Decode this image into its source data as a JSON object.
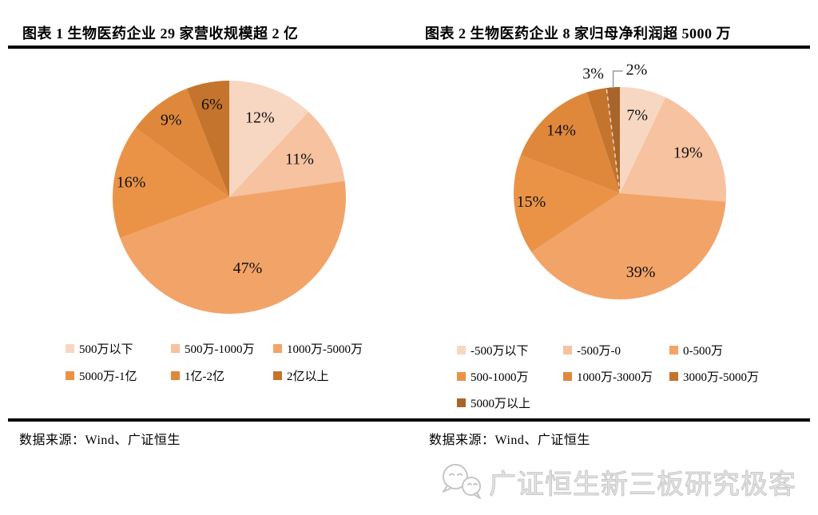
{
  "page": {
    "background": "#ffffff",
    "divider_color": "#000000"
  },
  "left_panel": {
    "title": "图表 1 生物医药企业 29 家营收规模超 2 亿",
    "source": "数据来源：Wind、广证恒生"
  },
  "right_panel": {
    "title": "图表 2 生物医药企业 8 家归母净利润超 5000 万",
    "source": "数据来源：Wind、广证恒生"
  },
  "watermark": {
    "icon": "wechat-logo",
    "text": "广证恒生新三板研究极客",
    "color": "#c9c9c9"
  },
  "chart_data": [
    {
      "id": "revenue-scale-pie",
      "type": "pie",
      "title": "图表 1 生物医药企业 29 家营收规模超 2 亿",
      "start_angle_deg": 0,
      "direction": "clockwise",
      "legend_position": "bottom",
      "slices": [
        {
          "label": "500万以下",
          "value": 12,
          "text": "12%",
          "color": "#F8D7C2",
          "label_frac": 0.72,
          "placement": "inside"
        },
        {
          "label": "500万-1000万",
          "value": 11,
          "text": "11%",
          "color": "#F6C2A0",
          "label_frac": 0.68,
          "placement": "inside"
        },
        {
          "label": "1000万-5000万",
          "value": 47,
          "text": "47%",
          "color": "#F2A368",
          "label_frac": 0.64,
          "placement": "inside"
        },
        {
          "label": "5000万-1亿",
          "value": 16,
          "text": "16%",
          "color": "#EA9347",
          "label_frac": 0.85,
          "placement": "inside"
        },
        {
          "label": "1亿-2亿",
          "value": 9,
          "text": "9%",
          "color": "#DF883C",
          "label_frac": 0.82,
          "placement": "inside"
        },
        {
          "label": "2亿以上",
          "value": 6,
          "text": "6%",
          "color": "#C4742C",
          "label_frac": 0.8,
          "placement": "inside"
        }
      ]
    },
    {
      "id": "net-profit-pie",
      "type": "pie",
      "title": "图表 2 生物医药企业 8 家归母净利润超 5000 万",
      "start_angle_deg": 0,
      "direction": "clockwise",
      "legend_position": "bottom",
      "slices": [
        {
          "label": "-500万以下",
          "value": 7,
          "text": "7%",
          "color": "#F8D7C2",
          "label_frac": 0.74,
          "placement": "inside"
        },
        {
          "label": "-500万-0",
          "value": 19,
          "text": "19%",
          "color": "#F6C2A0",
          "label_frac": 0.74,
          "placement": "inside"
        },
        {
          "label": "0-500万",
          "value": 39,
          "text": "39%",
          "color": "#F2A368",
          "label_frac": 0.78,
          "placement": "inside"
        },
        {
          "label": "500-1000万",
          "value": 15,
          "text": "15%",
          "color": "#EA9347",
          "label_frac": 0.84,
          "placement": "inside"
        },
        {
          "label": "1000万-3000万",
          "value": 14,
          "text": "14%",
          "color": "#DF883C",
          "label_frac": 0.8,
          "placement": "inside"
        },
        {
          "label": "3000万-5000万",
          "value": 3,
          "text": "3%",
          "color": "#C4742C",
          "label_frac": 1.14,
          "placement": "outside"
        },
        {
          "label": "5000万以上",
          "value": 2,
          "text": "2%",
          "color": "#A8652B",
          "label_frac": 1.0,
          "placement": "callout",
          "dashed_start_border": true
        }
      ]
    }
  ]
}
